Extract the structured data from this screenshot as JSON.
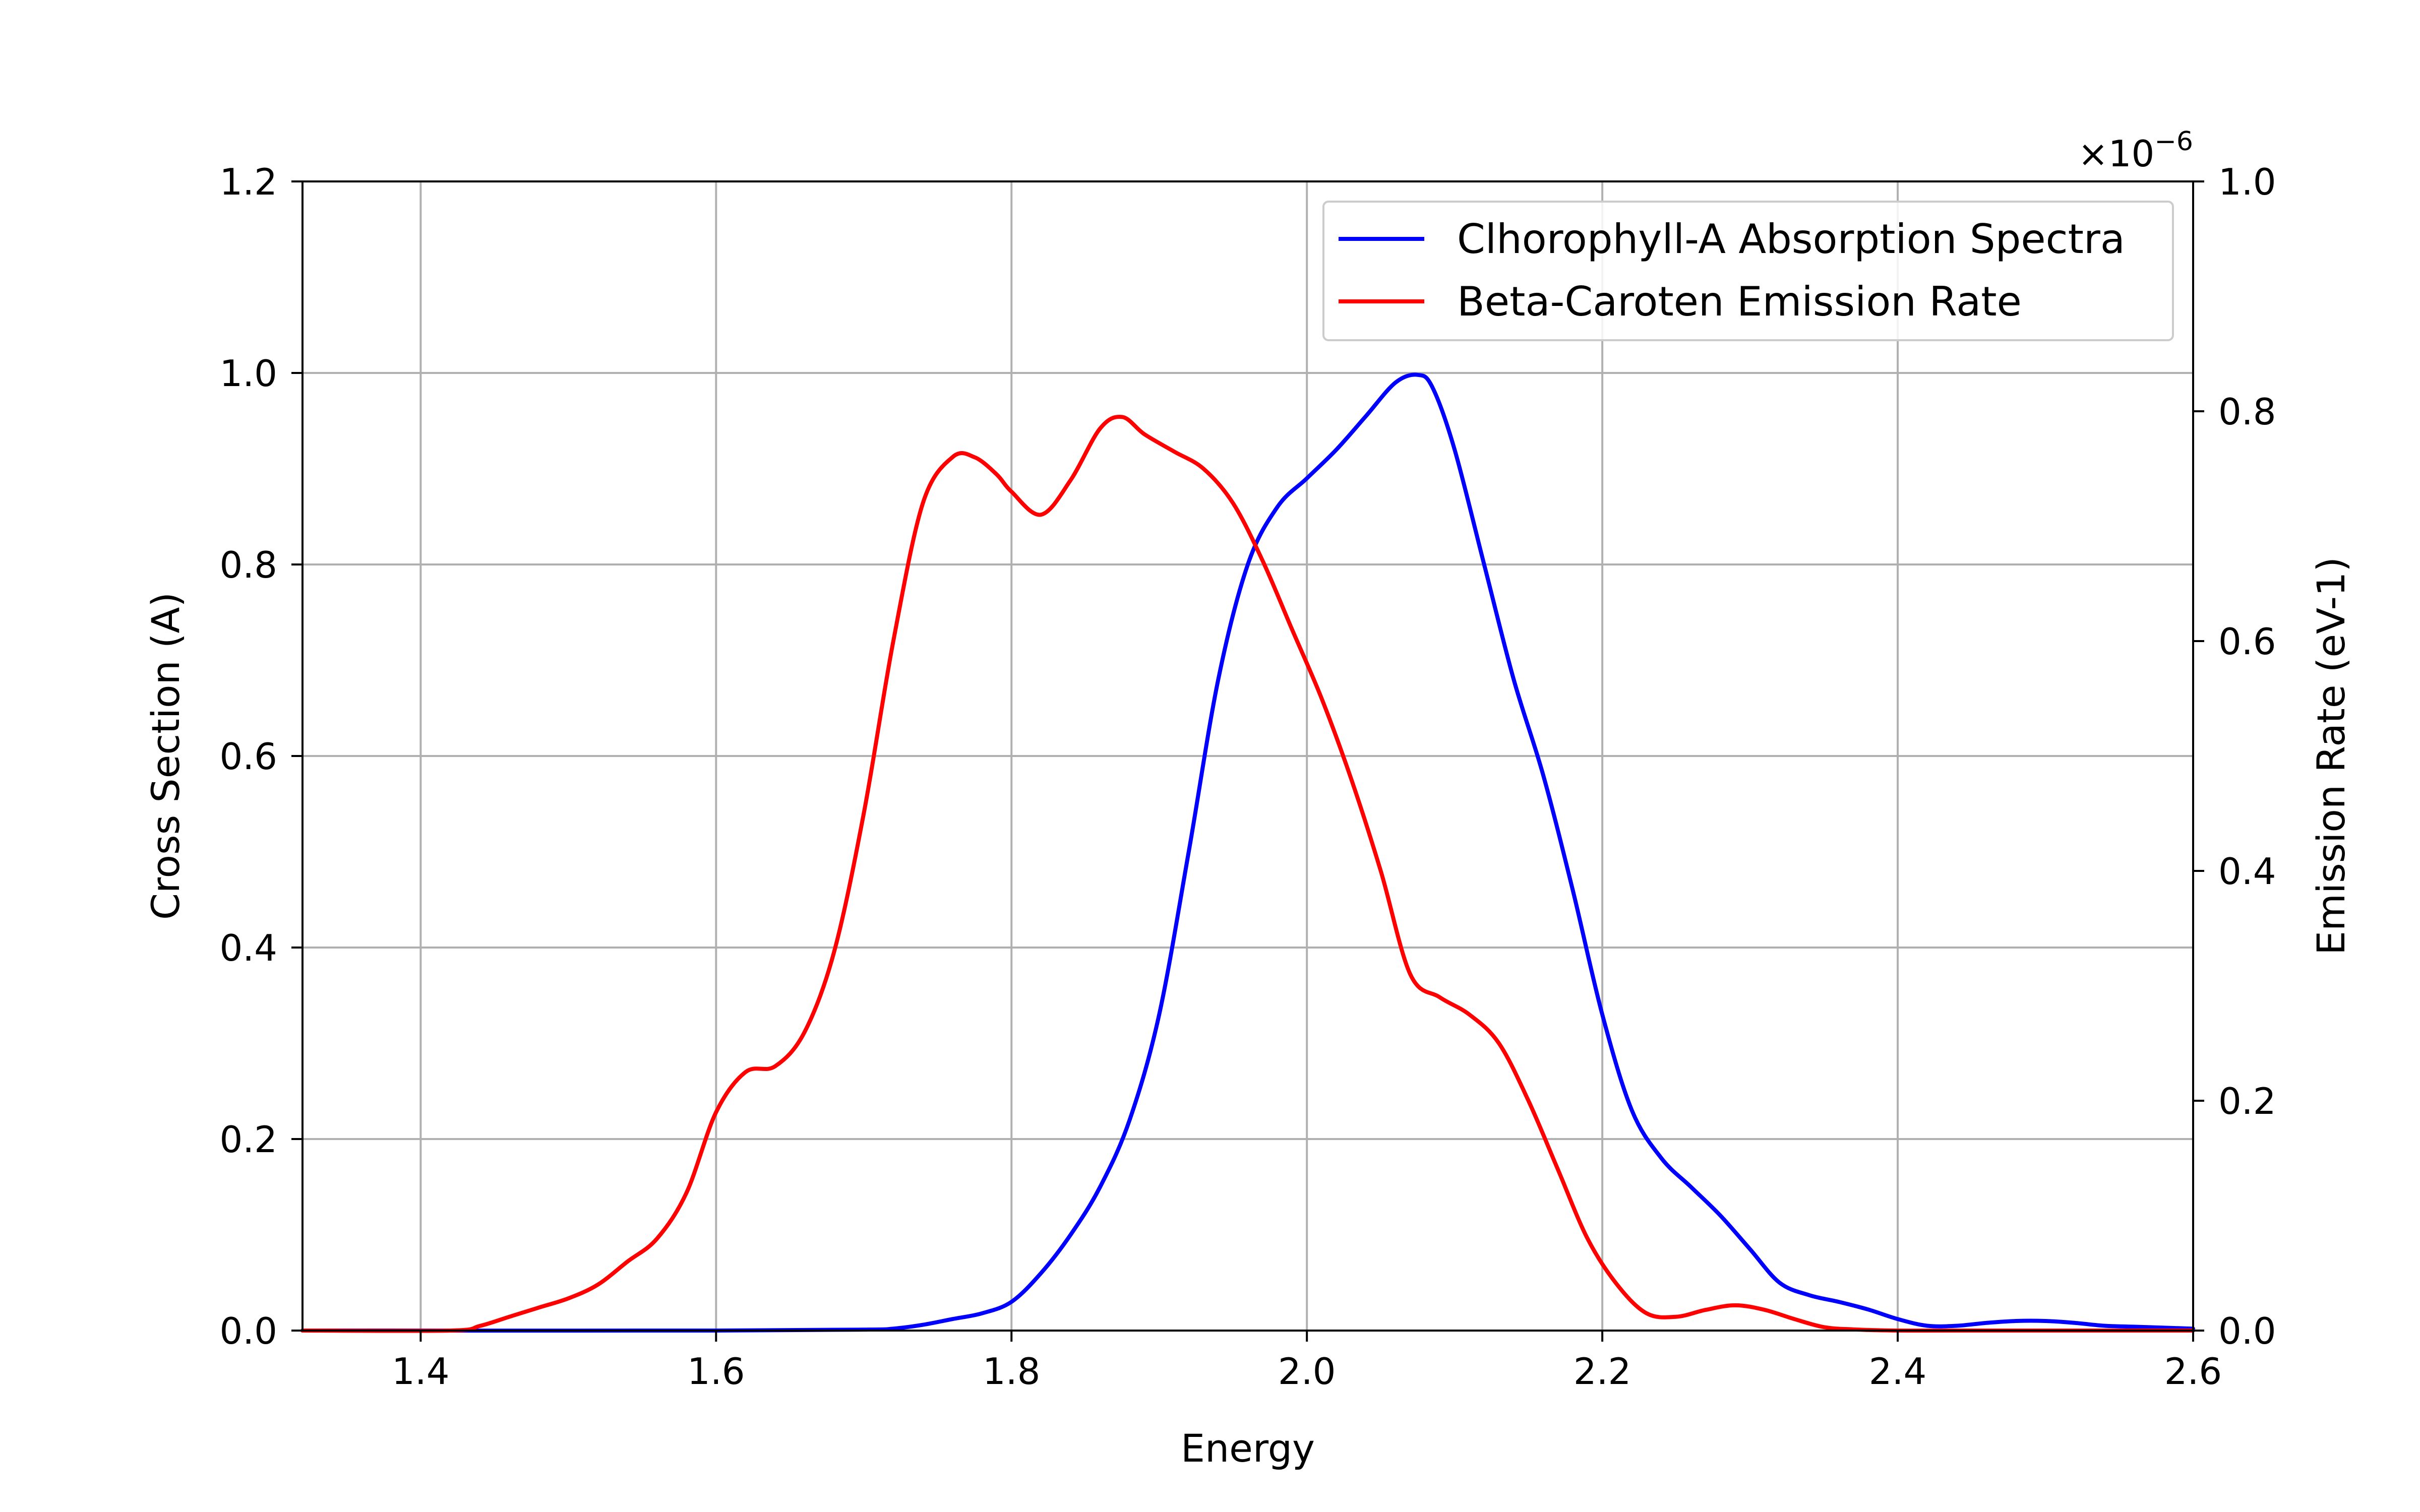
{
  "chart_data": {
    "type": "line",
    "xlabel": "Energy",
    "ylabel_left": "Cross Section (A)",
    "ylabel_right": "Emission Rate (eV-1)",
    "right_axis_multiplier": "×10",
    "right_axis_exponent": "−6",
    "xlim": [
      1.32,
      2.6
    ],
    "ylim_left": [
      0.0,
      1.2
    ],
    "ylim_right": [
      0.0,
      1.0
    ],
    "x_ticks": [
      "1.4",
      "1.6",
      "1.8",
      "2.0",
      "2.2",
      "2.4",
      "2.6"
    ],
    "y_ticks_left": [
      "0.0",
      "0.2",
      "0.4",
      "0.6",
      "0.8",
      "1.0",
      "1.2"
    ],
    "y_ticks_right": [
      "0.0",
      "0.2",
      "0.4",
      "0.6",
      "0.8",
      "1.0"
    ],
    "grid": true,
    "legend_position": "top-right",
    "series": [
      {
        "name": "Clhorophyll-A Absorption Spectra",
        "color": "#0000ff",
        "axis": "left",
        "x": [
          1.32,
          1.6,
          1.7,
          1.72,
          1.74,
          1.76,
          1.78,
          1.8,
          1.82,
          1.84,
          1.86,
          1.88,
          1.9,
          1.92,
          1.94,
          1.96,
          1.98,
          2.0,
          2.02,
          2.04,
          2.06,
          2.075,
          2.085,
          2.1,
          2.12,
          2.14,
          2.16,
          2.18,
          2.2,
          2.22,
          2.24,
          2.26,
          2.28,
          2.3,
          2.32,
          2.34,
          2.36,
          2.38,
          2.4,
          2.42,
          2.44,
          2.46,
          2.48,
          2.5,
          2.52,
          2.54,
          2.56,
          2.6
        ],
        "y": [
          0.0,
          0.0,
          0.001,
          0.002,
          0.006,
          0.012,
          0.018,
          0.03,
          0.06,
          0.1,
          0.15,
          0.22,
          0.33,
          0.5,
          0.68,
          0.8,
          0.86,
          0.89,
          0.92,
          0.955,
          0.99,
          0.998,
          0.985,
          0.92,
          0.8,
          0.68,
          0.58,
          0.46,
          0.33,
          0.23,
          0.18,
          0.15,
          0.12,
          0.085,
          0.05,
          0.037,
          0.03,
          0.022,
          0.012,
          0.005,
          0.005,
          0.008,
          0.01,
          0.01,
          0.008,
          0.005,
          0.004,
          0.002
        ]
      },
      {
        "name": "Beta-Caroten Emission Rate",
        "color": "#ff0000",
        "axis": "right",
        "x": [
          1.32,
          1.42,
          1.44,
          1.46,
          1.48,
          1.5,
          1.52,
          1.54,
          1.56,
          1.58,
          1.6,
          1.62,
          1.64,
          1.66,
          1.68,
          1.7,
          1.72,
          1.74,
          1.76,
          1.775,
          1.79,
          1.8,
          1.82,
          1.84,
          1.86,
          1.875,
          1.89,
          1.91,
          1.93,
          1.95,
          1.97,
          1.99,
          2.01,
          2.03,
          2.05,
          2.07,
          2.09,
          2.11,
          2.13,
          2.15,
          2.17,
          2.19,
          2.21,
          2.23,
          2.25,
          2.27,
          2.29,
          2.31,
          2.33,
          2.35,
          2.37,
          2.4,
          2.45,
          2.6
        ],
        "y": [
          0.0,
          0.0,
          0.004,
          0.012,
          0.02,
          0.028,
          0.04,
          0.06,
          0.08,
          0.12,
          0.19,
          0.225,
          0.23,
          0.26,
          0.33,
          0.45,
          0.6,
          0.72,
          0.76,
          0.76,
          0.745,
          0.73,
          0.71,
          0.74,
          0.785,
          0.795,
          0.78,
          0.765,
          0.75,
          0.72,
          0.67,
          0.61,
          0.55,
          0.48,
          0.4,
          0.31,
          0.29,
          0.275,
          0.25,
          0.2,
          0.14,
          0.08,
          0.04,
          0.015,
          0.012,
          0.018,
          0.022,
          0.018,
          0.01,
          0.003,
          0.001,
          0.0,
          0.0,
          0.0
        ]
      }
    ]
  }
}
